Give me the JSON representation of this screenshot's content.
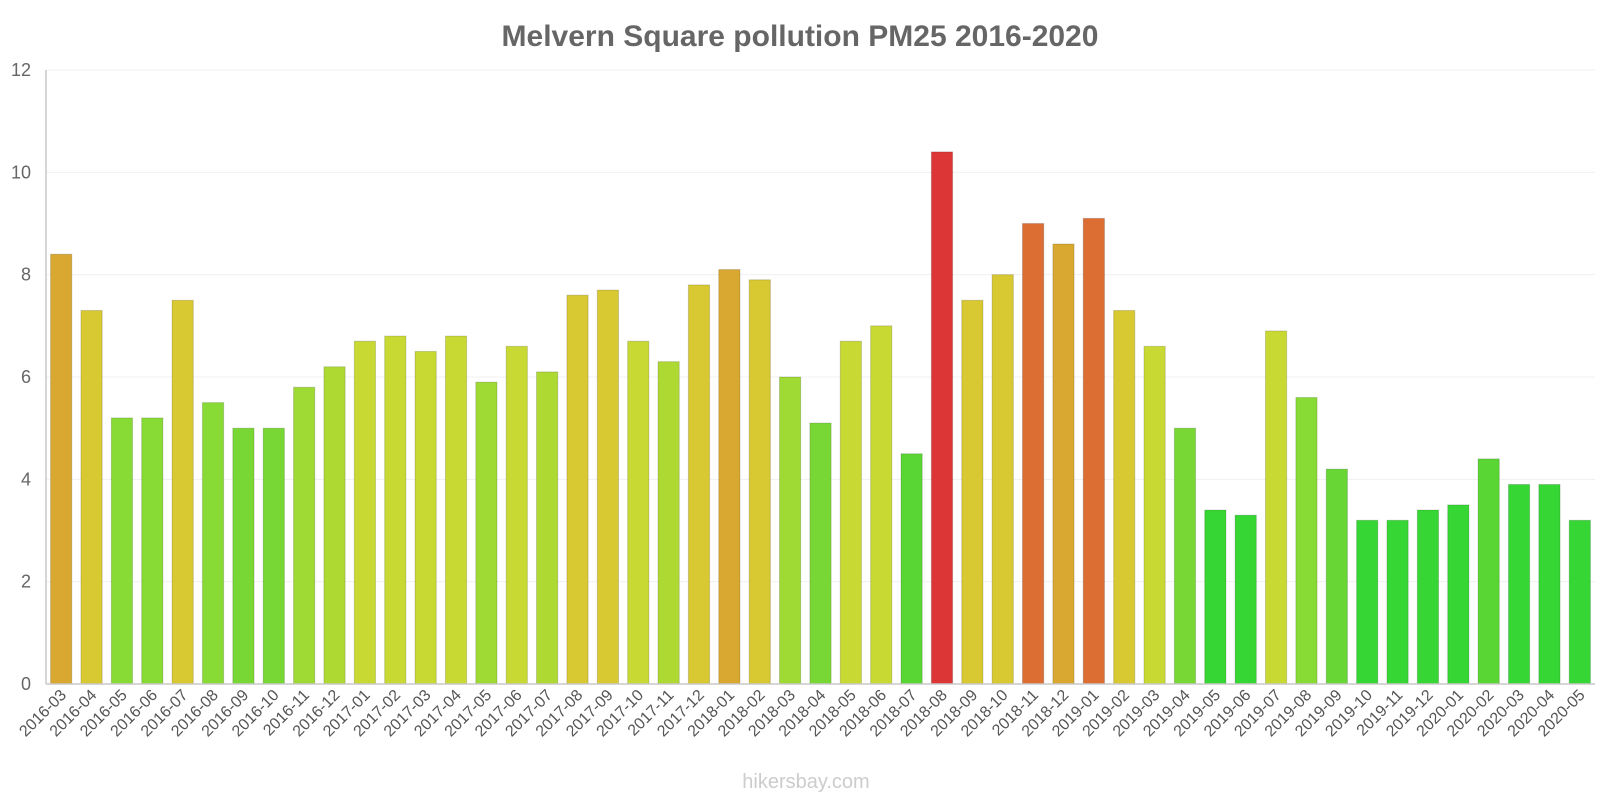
{
  "chart_data": {
    "type": "bar",
    "title": "Melvern Square pollution PM25 2016-2020",
    "xlabel": "",
    "ylabel": "",
    "ylim": [
      0,
      12
    ],
    "yticks": [
      0,
      2,
      4,
      6,
      8,
      10,
      12
    ],
    "grid": true,
    "categories": [
      "2016-03",
      "2016-04",
      "2016-05",
      "2016-06",
      "2016-07",
      "2016-08",
      "2016-09",
      "2016-10",
      "2016-11",
      "2016-12",
      "2017-01",
      "2017-02",
      "2017-03",
      "2017-04",
      "2017-05",
      "2017-06",
      "2017-07",
      "2017-08",
      "2017-09",
      "2017-10",
      "2017-11",
      "2017-12",
      "2018-01",
      "2018-02",
      "2018-03",
      "2018-04",
      "2018-05",
      "2018-06",
      "2018-07",
      "2018-08",
      "2018-09",
      "2018-10",
      "2018-11",
      "2018-12",
      "2019-01",
      "2019-02",
      "2019-03",
      "2019-04",
      "2019-05",
      "2019-06",
      "2019-07",
      "2019-08",
      "2019-09",
      "2019-10",
      "2019-11",
      "2019-12",
      "2020-01",
      "2020-02",
      "2020-03",
      "2020-04",
      "2020-05"
    ],
    "values": [
      8.4,
      7.3,
      5.2,
      5.2,
      7.5,
      5.5,
      5.0,
      5.0,
      5.8,
      6.2,
      6.7,
      6.8,
      6.5,
      6.8,
      5.9,
      6.6,
      6.1,
      7.6,
      7.7,
      6.7,
      6.3,
      7.8,
      8.1,
      7.9,
      6.0,
      5.1,
      6.7,
      7.0,
      4.5,
      10.4,
      7.5,
      8.0,
      9.0,
      8.6,
      9.1,
      7.3,
      6.6,
      5.0,
      3.4,
      3.3,
      6.9,
      5.6,
      4.2,
      3.2,
      3.2,
      3.4,
      3.5,
      4.4,
      3.9,
      3.9,
      3.2
    ],
    "colors": [
      "#d9a830",
      "#d8c832",
      "#88da34",
      "#88da34",
      "#d8c832",
      "#88da34",
      "#78d734",
      "#78d734",
      "#9ed934",
      "#aed933",
      "#c8d933",
      "#c8d933",
      "#c8d933",
      "#c8d933",
      "#9ed934",
      "#c8d933",
      "#aed933",
      "#d8c832",
      "#d8c832",
      "#c8d933",
      "#aed933",
      "#d8c832",
      "#d9a830",
      "#d8c832",
      "#9ed934",
      "#78d734",
      "#c8d933",
      "#c8d933",
      "#5ad634",
      "#dc3636",
      "#d8c832",
      "#d8c832",
      "#dc6e34",
      "#d9a830",
      "#dc6e34",
      "#d8c832",
      "#c8d933",
      "#78d734",
      "#36d634",
      "#36d634",
      "#c8d933",
      "#88da34",
      "#68d634",
      "#36d634",
      "#36d634",
      "#36d634",
      "#36d634",
      "#5ad634",
      "#36d634",
      "#36d634",
      "#36d634"
    ],
    "credit": "hikersbay.com"
  }
}
